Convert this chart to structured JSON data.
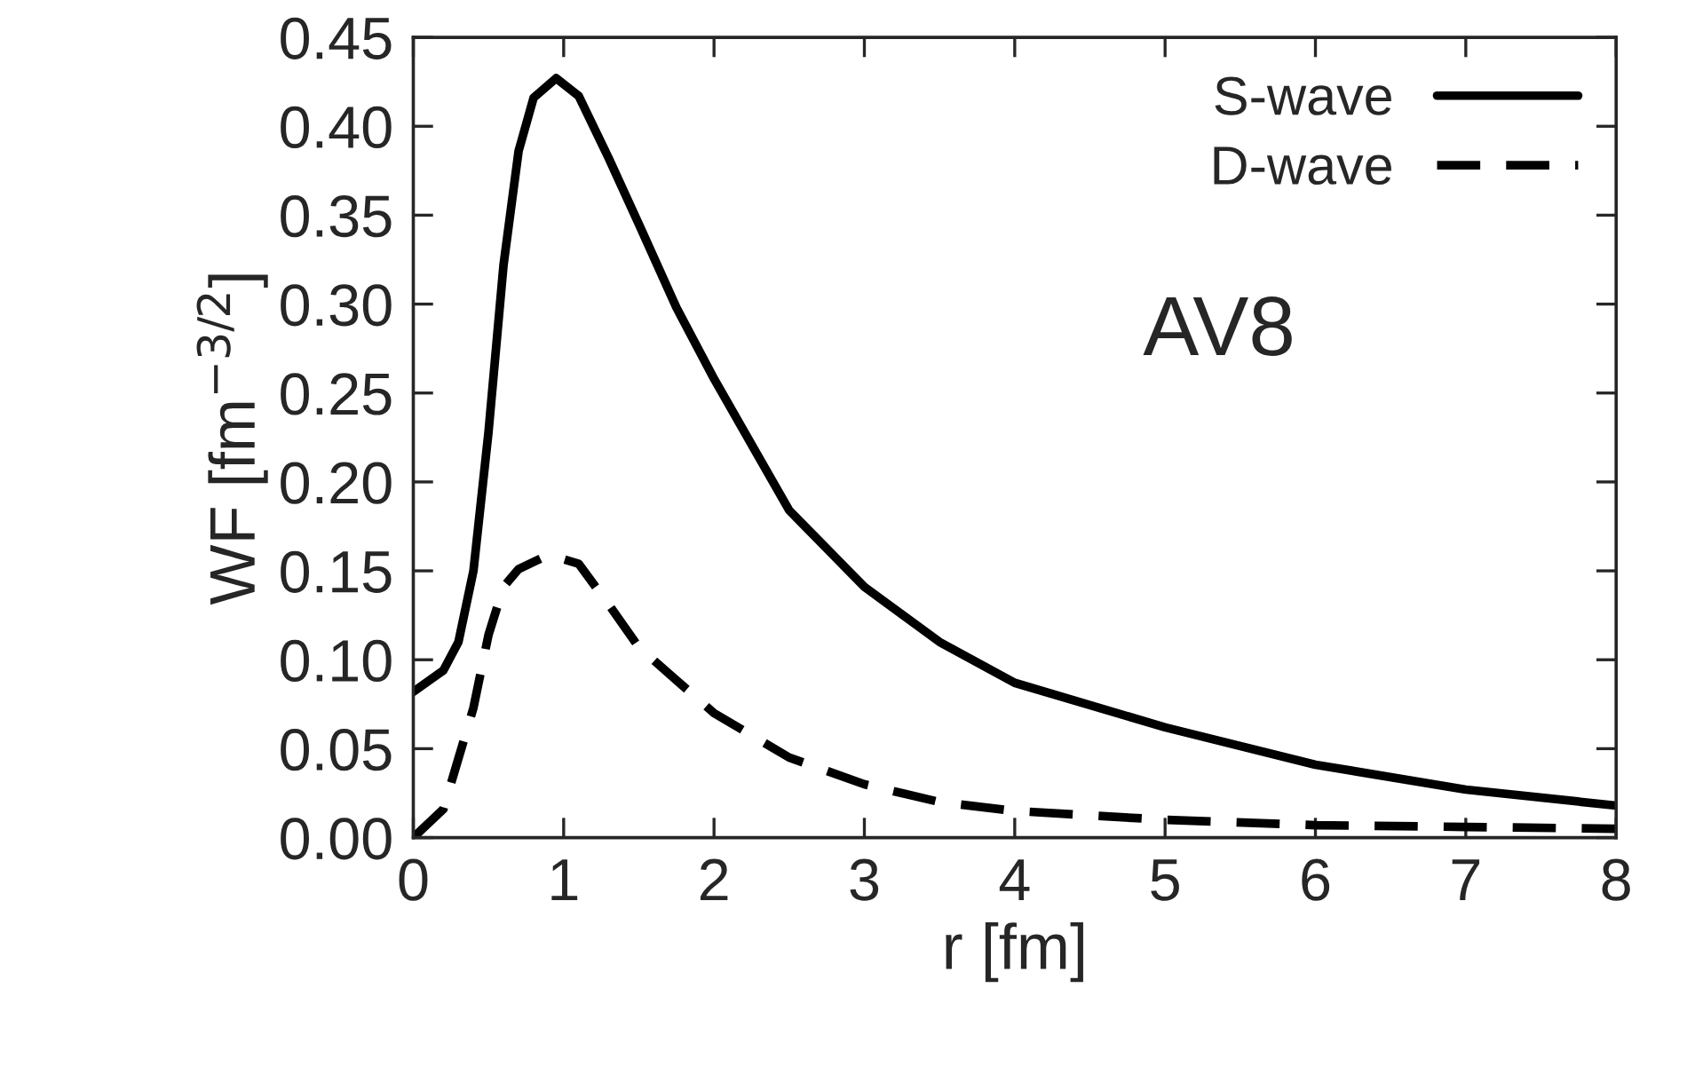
{
  "chart_data": {
    "type": "line",
    "xlabel": "r [fm]",
    "ylabel": "WF [fm$^{−3/2}$]",
    "annotations": [
      "AV8"
    ],
    "xlim": [
      0,
      8
    ],
    "xticks": [
      0,
      1,
      2,
      3,
      4,
      5,
      6,
      7,
      8
    ],
    "ylim": [
      0,
      0.45
    ],
    "yticks": [
      {
        "value": 0,
        "label": "0.00"
      },
      {
        "value": 0.05,
        "label": "0.05"
      },
      {
        "value": 0.1,
        "label": "0.10"
      },
      {
        "value": 0.15,
        "label": "0.15"
      },
      {
        "value": 0.2,
        "label": "0.20"
      },
      {
        "value": 0.25,
        "label": "0.25"
      },
      {
        "value": 0.3,
        "label": "0.30"
      },
      {
        "value": 0.35,
        "label": "0.35"
      },
      {
        "value": 0.4,
        "label": "0.40"
      },
      {
        "value": 0.45,
        "label": "0.45"
      }
    ],
    "grid": false,
    "legend": "top right",
    "marker": "none",
    "series": [
      {
        "name": "S-wave",
        "color": "#000000",
        "line_style": "solid",
        "x": [
          0,
          0.2,
          0.3,
          0.4,
          0.5,
          0.6,
          0.7,
          0.8,
          0.95,
          1.1,
          1.3,
          1.5,
          1.75,
          2,
          2.5,
          3,
          3.5,
          4,
          5,
          6,
          7,
          8
        ],
        "values": [
          0.082,
          0.094,
          0.11,
          0.15,
          0.228,
          0.322,
          0.386,
          0.416,
          0.427,
          0.417,
          0.382,
          0.345,
          0.298,
          0.258,
          0.184,
          0.141,
          0.11,
          0.087,
          0.062,
          0.041,
          0.027,
          0.018
        ]
      },
      {
        "name": "D-wave",
        "color": "#000000",
        "line_style": "dashed",
        "x": [
          0,
          0.2,
          0.4,
          0.5,
          0.6,
          0.7,
          0.9,
          1.1,
          1.3,
          1.5,
          2,
          2.5,
          3,
          3.5,
          4,
          5,
          6,
          7,
          8
        ],
        "values": [
          0,
          0.016,
          0.073,
          0.114,
          0.141,
          0.151,
          0.159,
          0.154,
          0.131,
          0.107,
          0.07,
          0.045,
          0.03,
          0.02,
          0.015,
          0.01,
          0.007,
          0.006,
          0.005
        ]
      }
    ]
  }
}
